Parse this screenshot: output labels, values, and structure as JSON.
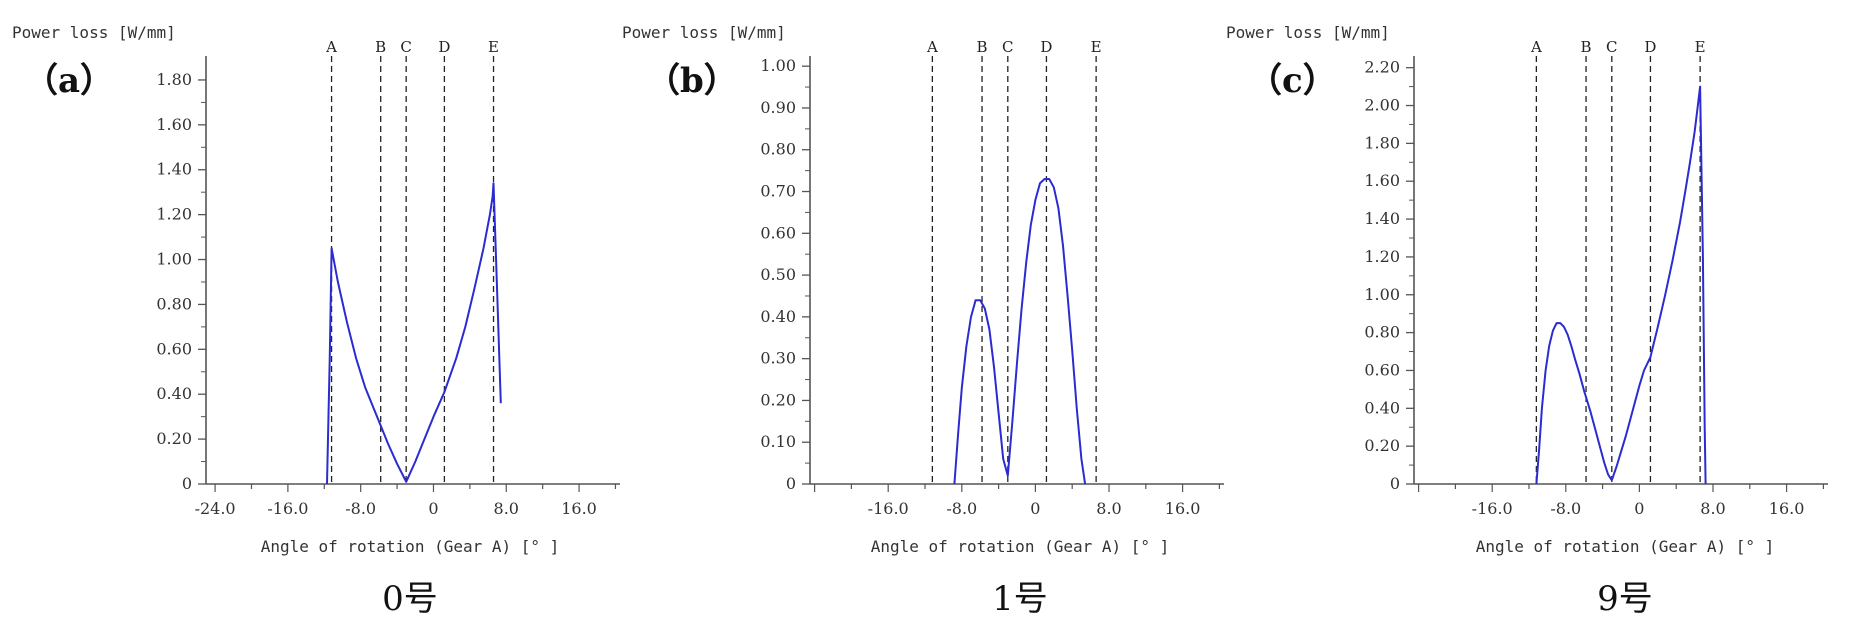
{
  "chart_data": [
    {
      "type": "line",
      "panel_label": "（a）",
      "caption": "0号",
      "ylabel": "Power loss [W/mm]",
      "xlabel": "Angle of rotation (Gear A) [° ]",
      "xlim": [
        -25.0,
        20.5
      ],
      "ylim": [
        0,
        1.88
      ],
      "xticks": [
        -24.0,
        -16.0,
        -8.0,
        0,
        8.0,
        16.0
      ],
      "xtick_labels": [
        "-24.0",
        "-16.0",
        "-8.0",
        "0",
        "8.0",
        "16.0"
      ],
      "yticks": [
        0,
        0.2,
        0.4,
        0.6,
        0.8,
        1.0,
        1.2,
        1.4,
        1.6,
        1.8
      ],
      "ytick_labels": [
        "0",
        "0.20",
        "0.40",
        "0.60",
        "0.80",
        "1.00",
        "1.20",
        "1.40",
        "1.60",
        "1.80"
      ],
      "reference_lines": [
        {
          "label": "A",
          "x": -11.2
        },
        {
          "label": "B",
          "x": -5.8
        },
        {
          "label": "C",
          "x": -3.0
        },
        {
          "label": "D",
          "x": 1.2
        },
        {
          "label": "E",
          "x": 6.6
        }
      ],
      "series": [
        {
          "color": "#2b2bd1",
          "x": [
            -11.7,
            -11.4,
            -11.2,
            -10.5,
            -9.5,
            -8.5,
            -7.5,
            -6.5,
            -5.8,
            -5.0,
            -4.0,
            -3.0,
            -2.0,
            -1.0,
            0,
            1.2,
            2.5,
            3.5,
            4.5,
            5.5,
            6.2,
            6.5,
            6.6,
            7.0,
            7.4
          ],
          "y": [
            0,
            0.55,
            1.05,
            0.9,
            0.72,
            0.56,
            0.43,
            0.33,
            0.26,
            0.18,
            0.09,
            0.01,
            0.1,
            0.2,
            0.3,
            0.41,
            0.56,
            0.7,
            0.87,
            1.05,
            1.2,
            1.28,
            1.34,
            0.85,
            0.36
          ]
        }
      ]
    },
    {
      "type": "line",
      "panel_label": "（b）",
      "caption": "1号",
      "ylabel": "Power loss [W/mm]",
      "xlabel": "Angle of rotation (Gear A) [° ]",
      "xlim": [
        -24.5,
        20.5
      ],
      "ylim": [
        0,
        1.01
      ],
      "xticks": [
        -16.0,
        -8.0,
        0,
        8.0,
        16.0
      ],
      "xtick_labels": [
        "-16.0",
        "-8.0",
        "0",
        "8.0",
        "16.0"
      ],
      "yticks": [
        0,
        0.1,
        0.2,
        0.3,
        0.4,
        0.5,
        0.6,
        0.7,
        0.8,
        0.9,
        1.0
      ],
      "ytick_labels": [
        "0",
        "0.10",
        "0.20",
        "0.30",
        "0.40",
        "0.50",
        "0.60",
        "0.70",
        "0.80",
        "0.90",
        "1.00"
      ],
      "reference_lines": [
        {
          "label": "A",
          "x": -11.2
        },
        {
          "label": "B",
          "x": -5.8
        },
        {
          "label": "C",
          "x": -3.0
        },
        {
          "label": "D",
          "x": 1.2
        },
        {
          "label": "E",
          "x": 6.6
        }
      ],
      "series": [
        {
          "color": "#2b2bd1",
          "x": [
            -8.8,
            -8.4,
            -8.0,
            -7.5,
            -7.0,
            -6.5,
            -6.0,
            -5.5,
            -5.0,
            -4.5,
            -4.0,
            -3.5,
            -3.0,
            -2.5,
            -2.0,
            -1.5,
            -1.0,
            -0.5,
            0,
            0.5,
            1.0,
            1.5,
            2.0,
            2.5,
            3.0,
            3.5,
            4.0,
            4.5,
            5.0,
            5.4
          ],
          "y": [
            0,
            0.12,
            0.23,
            0.33,
            0.4,
            0.44,
            0.44,
            0.42,
            0.37,
            0.28,
            0.17,
            0.06,
            0.02,
            0.15,
            0.29,
            0.42,
            0.53,
            0.62,
            0.68,
            0.72,
            0.73,
            0.73,
            0.71,
            0.66,
            0.57,
            0.45,
            0.32,
            0.18,
            0.06,
            0
          ]
        }
      ]
    },
    {
      "type": "line",
      "panel_label": "（c）",
      "caption": "9号",
      "ylabel": "Power loss [W/mm]",
      "xlabel": "Angle of rotation (Gear A) [° ]",
      "xlim": [
        -24.5,
        20.5
      ],
      "ylim": [
        0,
        2.23
      ],
      "xticks": [
        -16.0,
        -8.0,
        0,
        8.0,
        16.0
      ],
      "xtick_labels": [
        "-16.0",
        "-8.0",
        "0",
        "8.0",
        "16.0"
      ],
      "yticks": [
        0,
        0.2,
        0.4,
        0.6,
        0.8,
        1.0,
        1.2,
        1.4,
        1.6,
        1.8,
        2.0,
        2.2
      ],
      "ytick_labels": [
        "0",
        "0.20",
        "0.40",
        "0.60",
        "0.80",
        "1.00",
        "1.20",
        "1.40",
        "1.60",
        "1.80",
        "2.00",
        "2.20"
      ],
      "reference_lines": [
        {
          "label": "A",
          "x": -11.2
        },
        {
          "label": "B",
          "x": -5.8
        },
        {
          "label": "C",
          "x": -3.0
        },
        {
          "label": "D",
          "x": 1.2
        },
        {
          "label": "E",
          "x": 6.6
        }
      ],
      "series": [
        {
          "color": "#2b2bd1",
          "x": [
            -11.2,
            -10.9,
            -10.6,
            -10.2,
            -9.8,
            -9.4,
            -9.0,
            -8.6,
            -8.2,
            -7.8,
            -7.4,
            -7.0,
            -6.5,
            -6.0,
            -5.8,
            -5.3,
            -4.8,
            -4.3,
            -3.8,
            -3.4,
            -3.0,
            -2.5,
            -2.0,
            -1.5,
            -1.0,
            -0.5,
            0,
            0.5,
            1.2,
            2.0,
            2.8,
            3.6,
            4.4,
            5.0,
            5.5,
            6.0,
            6.3,
            6.6,
            6.9,
            7.1,
            7.2
          ],
          "y": [
            0,
            0.18,
            0.4,
            0.6,
            0.73,
            0.81,
            0.85,
            0.85,
            0.83,
            0.79,
            0.73,
            0.66,
            0.58,
            0.49,
            0.46,
            0.38,
            0.29,
            0.2,
            0.11,
            0.05,
            0.02,
            0.09,
            0.17,
            0.25,
            0.34,
            0.43,
            0.52,
            0.6,
            0.67,
            0.83,
            1.0,
            1.18,
            1.38,
            1.55,
            1.7,
            1.86,
            1.98,
            2.1,
            1.2,
            0.3,
            0
          ]
        }
      ]
    }
  ]
}
